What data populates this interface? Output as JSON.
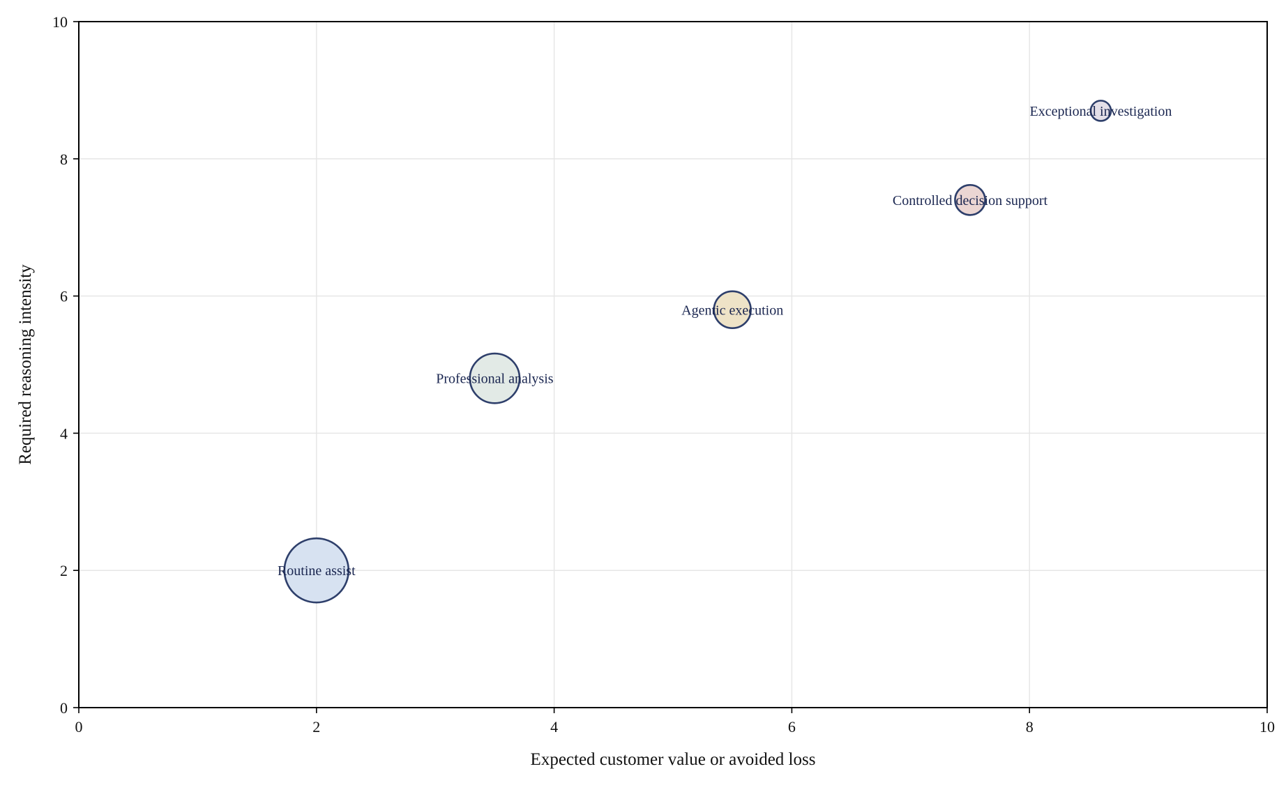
{
  "chart_data": {
    "type": "scatter",
    "subtype": "bubble",
    "title": "",
    "xlabel": "Expected customer value or avoided loss",
    "ylabel": "Required reasoning intensity",
    "xlim": [
      0,
      10
    ],
    "ylim": [
      0,
      10
    ],
    "xticks": [
      "0",
      "2",
      "4",
      "6",
      "8",
      "10"
    ],
    "yticks": [
      "0",
      "2",
      "4",
      "6",
      "8",
      "10"
    ],
    "grid": true,
    "legend": "none",
    "edge_color": "#2e3f6b",
    "label_color": "#1a2650",
    "points": [
      {
        "label": "Routine assist",
        "x": 2.0,
        "y": 2.0,
        "relative_size": 1.0,
        "color": "#d7e2f1"
      },
      {
        "label": "Professional analysis",
        "x": 3.5,
        "y": 4.8,
        "relative_size": 0.6,
        "color": "#e2eae6"
      },
      {
        "label": "Agentic execution",
        "x": 5.5,
        "y": 5.8,
        "relative_size": 0.33,
        "color": "#eee3c7"
      },
      {
        "label": "Controlled decision support",
        "x": 7.5,
        "y": 7.4,
        "relative_size": 0.22,
        "color": "#ebd6d3"
      },
      {
        "label": "Exceptional investigation",
        "x": 8.6,
        "y": 8.7,
        "relative_size": 0.1,
        "color": "#e3dfe8"
      }
    ]
  }
}
